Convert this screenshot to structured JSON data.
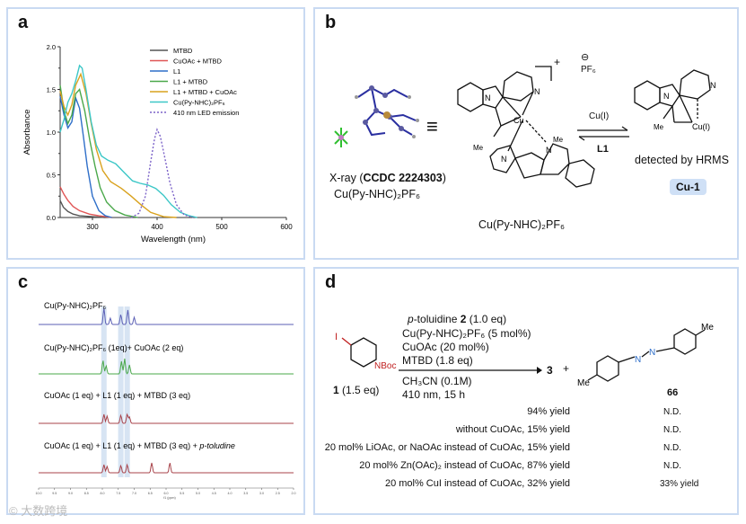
{
  "panel_a": {
    "letter": "a",
    "chart_data": {
      "type": "line",
      "xlabel": "Wavelength (nm)",
      "ylabel": "Absorbance",
      "xlim": [
        250,
        600
      ],
      "ylim": [
        0,
        2.0
      ],
      "xticks": [
        "300",
        "400",
        "500",
        "600"
      ],
      "yticks": [
        "0.0",
        "0.5",
        "1.0",
        "1.5",
        "2.0"
      ],
      "minor_yticks": [
        0.25,
        0.75,
        1.25,
        1.75
      ],
      "legend_position": "top-right",
      "series": [
        {
          "name": "MTBD",
          "color": "#555555",
          "dashed": false,
          "x": [
            250,
            255,
            262,
            270,
            280,
            300,
            320
          ],
          "y": [
            0.2,
            0.12,
            0.07,
            0.04,
            0.02,
            0.01,
            0.0
          ]
        },
        {
          "name": "CuOAc +  MTBD",
          "color": "#e05555",
          "dashed": false,
          "x": [
            250,
            256,
            262,
            270,
            280,
            295,
            310,
            330
          ],
          "y": [
            0.36,
            0.27,
            0.2,
            0.13,
            0.08,
            0.04,
            0.02,
            0.0
          ]
        },
        {
          "name": "L1",
          "color": "#2f6fc9",
          "dashed": false,
          "x": [
            250,
            256,
            262,
            268,
            274,
            280,
            286,
            292,
            300,
            310,
            320,
            330
          ],
          "y": [
            1.42,
            1.2,
            1.05,
            1.12,
            1.4,
            1.28,
            0.95,
            0.6,
            0.25,
            0.08,
            0.02,
            0.0
          ]
        },
        {
          "name": "L1 + MTBD",
          "color": "#4aa84a",
          "dashed": false,
          "x": [
            250,
            256,
            262,
            268,
            274,
            280,
            288,
            296,
            304,
            312,
            322,
            335,
            350,
            370
          ],
          "y": [
            1.55,
            1.25,
            1.1,
            1.2,
            1.45,
            1.5,
            1.25,
            0.9,
            0.6,
            0.35,
            0.18,
            0.08,
            0.03,
            0.0
          ]
        },
        {
          "name": "L1 + MTBD + CuOAc",
          "color": "#d9a21e",
          "dashed": false,
          "x": [
            250,
            256,
            262,
            268,
            274,
            282,
            290,
            298,
            306,
            316,
            328,
            345,
            360,
            375,
            390,
            410,
            430
          ],
          "y": [
            1.48,
            1.3,
            1.2,
            1.32,
            1.55,
            1.68,
            1.45,
            1.1,
            0.8,
            0.55,
            0.42,
            0.34,
            0.25,
            0.15,
            0.06,
            0.01,
            0.0
          ]
        },
        {
          "name": "Cu(Py-NHC)₂PF₆",
          "color": "#3cc7c7",
          "dashed": false,
          "x": [
            250,
            256,
            262,
            268,
            274,
            280,
            284,
            290,
            298,
            306,
            314,
            324,
            336,
            350,
            362,
            374,
            386,
            398,
            410,
            422,
            436,
            450,
            462
          ],
          "y": [
            1.0,
            1.15,
            1.35,
            1.45,
            1.6,
            1.78,
            1.75,
            1.5,
            1.12,
            0.85,
            0.72,
            0.67,
            0.63,
            0.52,
            0.43,
            0.4,
            0.38,
            0.34,
            0.26,
            0.15,
            0.06,
            0.02,
            0.0
          ]
        },
        {
          "name": "410 nm LED emission",
          "color": "#7b62c8",
          "dashed": true,
          "x": [
            360,
            372,
            382,
            390,
            396,
            400,
            405,
            412,
            420,
            430,
            442,
            456
          ],
          "y": [
            0.0,
            0.05,
            0.25,
            0.65,
            0.92,
            1.03,
            0.95,
            0.7,
            0.4,
            0.15,
            0.03,
            0.0
          ]
        }
      ]
    }
  },
  "panel_b": {
    "letter": "b",
    "xray_prefix": "X-ray (",
    "xray_code": "CCDC 2224303",
    "xray_suffix": ")",
    "xray_compound": "Cu(Py-NHC)₂PF₆",
    "charge": "+",
    "minus": "⊖",
    "counterion": "PF₆",
    "equiv_symbol": "≡",
    "main_compound": "Cu(Py-NHC)₂PF₆",
    "cu_label": "Cu",
    "cu1_label": "Cu(I)",
    "methyl": "Me",
    "n_label": "N",
    "arrow_top": "Cu(I)",
    "arrow_bottom": "L1",
    "detected": "detected by HRMS",
    "badge": "Cu-1"
  },
  "panel_c": {
    "letter": "c",
    "ppm_ticks": [
      "10.0",
      "9.5",
      "9.0",
      "8.5",
      "8.0",
      "7.5",
      "7.0",
      "6.5",
      "6.0",
      "5.5",
      "5.0",
      "4.5",
      "4.0",
      "3.5",
      "3.0",
      "2.5",
      "2.0"
    ],
    "x_unit": "f1 (ppm)",
    "traces": [
      {
        "label_pre": "Cu(Py-NHC)₂PF₆",
        "label_post": "",
        "label_italic": "",
        "color": "#5b5fb5",
        "peaks": [
          [
            7.95,
            0.9
          ],
          [
            7.75,
            0.35
          ],
          [
            7.42,
            0.55
          ],
          [
            7.2,
            0.8
          ],
          [
            7.0,
            0.4
          ]
        ]
      },
      {
        "label_pre": "Cu(Py-NHC)₂PF₆ (1eq)+ CuOAc (2 eq)",
        "label_post": "",
        "label_italic": "",
        "color": "#4aa84a",
        "peaks": [
          [
            7.98,
            0.75
          ],
          [
            7.88,
            0.45
          ],
          [
            7.4,
            0.7
          ],
          [
            7.3,
            0.85
          ],
          [
            7.15,
            0.5
          ]
        ]
      },
      {
        "label_pre": "CuOAc (1 eq) + L1 (1 eq) + MTBD (3 eq)",
        "label_post": "",
        "label_italic": "",
        "color": "#a8434a",
        "peaks": [
          [
            7.95,
            0.5
          ],
          [
            7.85,
            0.4
          ],
          [
            7.42,
            0.45
          ],
          [
            7.22,
            0.5
          ],
          [
            7.15,
            0.35
          ]
        ]
      },
      {
        "label_pre": "CuOAc (1 eq) + L1 (1 eq) + MTBD (3 eq) + ",
        "label_post": "",
        "label_italic": "p-toludine",
        "color": "#a8434a",
        "peaks": [
          [
            7.95,
            0.45
          ],
          [
            7.85,
            0.35
          ],
          [
            7.42,
            0.4
          ],
          [
            7.22,
            0.45
          ],
          [
            6.45,
            0.55
          ],
          [
            5.88,
            0.55
          ]
        ]
      }
    ],
    "highlight_ppm": [
      7.95,
      7.42,
      7.22
    ]
  },
  "panel_d": {
    "letter": "d",
    "reactant_label_bold": "1",
    "reactant_label_rest": " (1.5 eq)",
    "iodo": "I",
    "nboc": "NBoc",
    "cond1_italic": "p",
    "cond1_rest": "-toluidine ",
    "cond1_bold": "2",
    "cond1_tail": " (1.0 eq)",
    "cond2": "Cu(Py-NHC)₂PF₆ (5 mol%)",
    "cond3": "CuOAc (20 mol%)",
    "cond4": "MTBD (1.8 eq)",
    "cond5": "CH₃CN (0.1M)",
    "cond6": "410 nm, 15 h",
    "product_3": "3",
    "plus": "+",
    "me_label": "Me",
    "azo_n": "N",
    "product_66": "66",
    "rows": [
      {
        "condition": "94% yield",
        "result": "N.D."
      },
      {
        "condition": "without CuOAc,  15% yield",
        "result": "N.D."
      },
      {
        "condition": "20 mol% LiOAc, or NaOAc  instead of CuOAc, 15% yield",
        "result": "N.D."
      },
      {
        "condition": "20 mol% Zn(OAc)₂  instead of CuOAc, 87% yield",
        "result": "N.D."
      },
      {
        "condition": "20 mol% CuI  instead of CuOAc, 32% yield",
        "result": "33% yield"
      }
    ]
  },
  "watermark": "© 大数跨境"
}
